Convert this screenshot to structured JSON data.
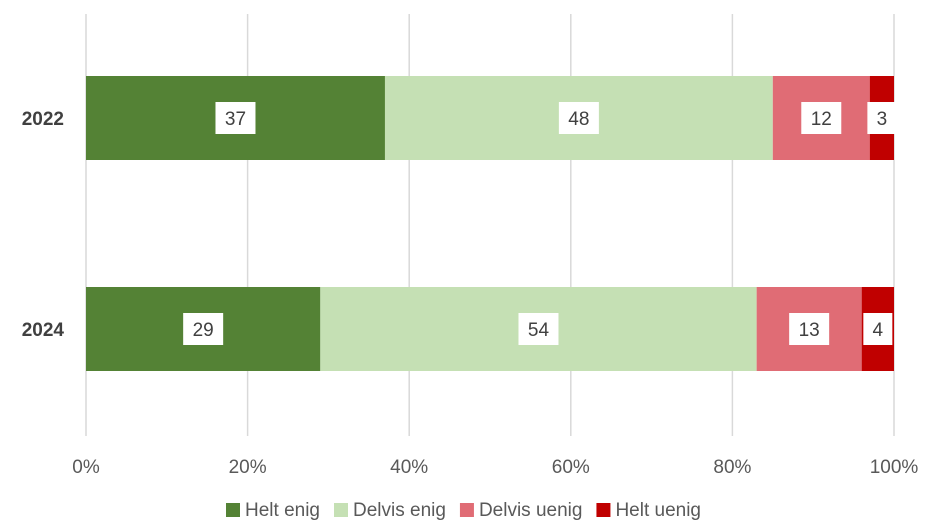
{
  "chart_data": {
    "type": "bar",
    "orientation": "horizontal",
    "stacked": true,
    "categories": [
      "2022",
      "2024"
    ],
    "series": [
      {
        "name": "Helt enig",
        "values": [
          37,
          29
        ],
        "color": "#548235"
      },
      {
        "name": "Delvis enig",
        "values": [
          48,
          54
        ],
        "color": "#C5E0B4"
      },
      {
        "name": "Delvis uenig",
        "values": [
          12,
          13
        ],
        "color": "#E06C75"
      },
      {
        "name": "Helt uenig",
        "values": [
          3,
          4
        ],
        "color": "#C00000"
      }
    ],
    "xlim": [
      0,
      100
    ],
    "x_ticks": [
      "0%",
      "20%",
      "40%",
      "60%",
      "80%",
      "100%"
    ],
    "title": "",
    "xlabel": "",
    "ylabel": "",
    "grid": "vertical",
    "legend_position": "bottom"
  }
}
